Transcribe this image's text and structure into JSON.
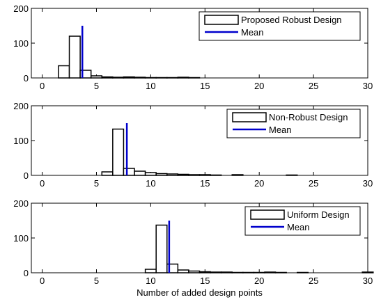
{
  "chart_data": [
    {
      "type": "bar",
      "xlim": [
        -1,
        30
      ],
      "ylim": [
        0,
        200
      ],
      "xticks": [
        0,
        5,
        10,
        15,
        20,
        25,
        30
      ],
      "yticks": [
        0,
        100,
        200
      ],
      "series": [
        {
          "name": "Proposed Robust Design",
          "bins": [
            2,
            3,
            4,
            5,
            6,
            7,
            8,
            9,
            10,
            11,
            12,
            13,
            14
          ],
          "values": [
            35,
            120,
            22,
            6,
            3,
            2,
            3,
            2,
            1,
            1,
            1,
            2,
            1
          ]
        },
        {
          "name": "Mean",
          "x": 3.7,
          "height": 150
        }
      ],
      "legend": "top-right"
    },
    {
      "type": "bar",
      "xlim": [
        -1,
        30
      ],
      "ylim": [
        0,
        200
      ],
      "xticks": [
        0,
        5,
        10,
        15,
        20,
        25,
        30
      ],
      "yticks": [
        0,
        100,
        200
      ],
      "series": [
        {
          "name": "Non-Robust Design",
          "bins": [
            6,
            7,
            8,
            9,
            10,
            11,
            12,
            13,
            14,
            15,
            16,
            18,
            23
          ],
          "values": [
            10,
            133,
            20,
            12,
            8,
            5,
            4,
            3,
            2,
            2,
            1,
            2,
            1
          ]
        },
        {
          "name": "Mean",
          "x": 7.8,
          "height": 150
        }
      ],
      "legend": "top-right"
    },
    {
      "type": "bar",
      "xlim": [
        -1,
        30
      ],
      "ylim": [
        0,
        200
      ],
      "xticks": [
        0,
        5,
        10,
        15,
        20,
        25,
        30
      ],
      "yticks": [
        0,
        100,
        200
      ],
      "xlabel": "Number of added design points",
      "series": [
        {
          "name": "Uniform Design",
          "bins": [
            10,
            11,
            12,
            13,
            14,
            15,
            16,
            17,
            18,
            19,
            20,
            21,
            22,
            24,
            30
          ],
          "values": [
            10,
            137,
            25,
            8,
            5,
            3,
            2,
            2,
            1,
            1,
            1,
            2,
            1,
            1,
            2
          ]
        },
        {
          "name": "Mean",
          "x": 11.7,
          "height": 150
        }
      ],
      "legend": "top-right"
    }
  ],
  "colors": {
    "bar_edge": "#000000",
    "bar_fill": "#ffffff",
    "mean_line": "#0000cc",
    "axis": "#000000"
  }
}
